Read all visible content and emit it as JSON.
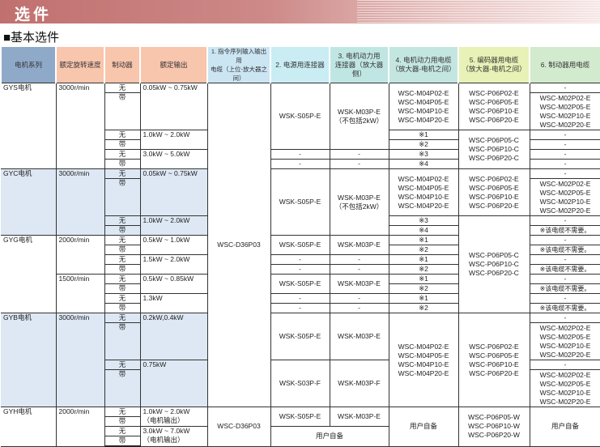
{
  "banner": {
    "title": "选件"
  },
  "section": {
    "title": "■基本选件"
  },
  "table": {
    "headers": [
      "电机系列",
      "额定旋转速度",
      "制动器",
      "额定输出",
      "1. 指令序列输入输出用\n电缆（上位-放大器之间）",
      "2. 电源用连接器",
      "3. 电机动力用\n连接器（放大器侧）",
      "4. 电机动力用电缆\n（放大器-电机之间）",
      "5. 编码器用电缆\n（放大器-电机之间）",
      "6. 制动器用电缆"
    ],
    "header_colors": [
      "#8fa9c9",
      "#f8c5ad",
      "#f8c5ad",
      "#f8c5ad",
      "#cbe5f3",
      "#c9edf3",
      "#c0e6e4",
      "#c4e6e1",
      "#e8f1b6",
      "#d2eacd"
    ],
    "body": [
      [
        "GYS电机",
        "3000r/min",
        "无",
        "0.05kW ~ 0.75kW",
        "WSC-D36P03",
        "WSK-S05P-E",
        "WSK-M03P-E\n（不包括2kW）",
        "WSC-M04P02-E\nWSC-M04P05-E\nWSC-M04P10-E\nWSC-M04P20-E",
        "WSC-P06P02-E\nWSC-P06P05-E\nWSC-P06P10-E\nWSC-P06P20-E",
        "-"
      ],
      [
        "带",
        "WSC-M02P02-E\nWSC-M02P05-E\nWSC-M02P10-E\nWSC-M02P20-E"
      ],
      [],
      [],
      [],
      [
        "无",
        "1.0kW ~ 2.0kW",
        "※1",
        "WSC-P06P05-C\nWSC-P06P10-C\nWSC-P06P20-C",
        "-"
      ],
      [
        "带",
        "※2",
        "-"
      ],
      [
        "无",
        "3.0kW ~ 5.0kW",
        "-",
        "-",
        "※3",
        "-"
      ],
      [
        "带",
        "-",
        "-",
        "※4",
        "-"
      ],
      [
        "GYC电机",
        "3000r/min",
        "无",
        "0.05kW ~ 0.75kW",
        "WSK-S05P-E",
        "WSK-M03P-E\n（不包括2kW）",
        "WSC-M04P02-E\nWSC-M04P05-E\nWSC-M04P10-E\nWSC-M04P20-E",
        "WSC-P06P02-E\nWSC-P06P05-E\nWSC-P06P10-E\nWSC-P06P20-E",
        "-"
      ],
      [
        "带",
        "WSC-M02P02-E\nWSC-M02P05-E\nWSC-M02P10-E\nWSC-M02P20-E"
      ],
      [],
      [],
      [],
      [
        "无",
        "1.0kW ~ 2.0kW",
        "※3",
        "WSC-P06P05-C\nWSC-P06P10-C\nWSC-P06P20-C",
        "-"
      ],
      [
        "带",
        "※4",
        "※该电缆不需要。"
      ],
      [
        "GYG电机",
        "2000r/min",
        "无",
        "0.5kW ~ 1.0kW",
        "WSK-S05P-E",
        "WSK-M03P-E",
        "※1",
        "-"
      ],
      [
        "带",
        "※2",
        "※该电缆不需要。"
      ],
      [
        "无",
        "1.5kW ~ 2.0kW",
        "-",
        "-",
        "※1",
        "-"
      ],
      [
        "带",
        "-",
        "-",
        "※2",
        "※该电缆不需要。"
      ],
      [
        "1500r/min",
        "无",
        "0.5kW ~ 0.85kW",
        "WSK-S05P-E",
        "WSK-M03P-E",
        "※1",
        "-"
      ],
      [
        "带",
        "※2",
        "※该电缆不需要。"
      ],
      [
        "无",
        "1.3kW",
        "-",
        "-",
        "※1",
        "-"
      ],
      [
        "带",
        "-",
        "-",
        "※2",
        "※该电缆不需要。"
      ],
      [
        "GYB电机",
        "3000r/min",
        "无",
        "0.2kW,0.4kW",
        "WSK-S05P-E",
        "WSK-M03P-E",
        "WSC-M04P02-E\nWSC-M04P05-E\nWSC-M04P10-E\nWSC-M04P20-E",
        "WSC-P06P02-E\nWSC-P06P05-E\nWSC-P06P10-E\nWSC-P06P20-E",
        "-"
      ],
      [
        "带",
        "WSC-M02P02-E\nWSC-M02P05-E\nWSC-M02P10-E\nWSC-M02P20-E"
      ],
      [],
      [],
      [],
      [
        "无",
        "0.75kW",
        "WSK-S03P-F",
        "WSK-M03P-F",
        "-"
      ],
      [
        "带",
        "WSC-M02P02-E\nWSC-M02P05-E\nWSC-M02P10-E\nWSC-M02P20-E"
      ],
      [],
      [],
      [],
      [
        "GYH电机",
        "2000r/min",
        "无",
        "1.0kW ~ 2.0kW\n（电机输出）",
        "WSC-D36P03",
        "WSK-S05P-E",
        "WSK-M03P-E",
        "用户自备",
        "WSC-P06P05-W\nWSC-P06P10-W\nWSC-P06P20-W",
        "用户自备"
      ],
      [
        "带"
      ],
      [
        "无",
        "3.0kW ~ 7.0kW\n（电机输出）",
        "用户自备"
      ],
      [
        "带"
      ]
    ]
  }
}
